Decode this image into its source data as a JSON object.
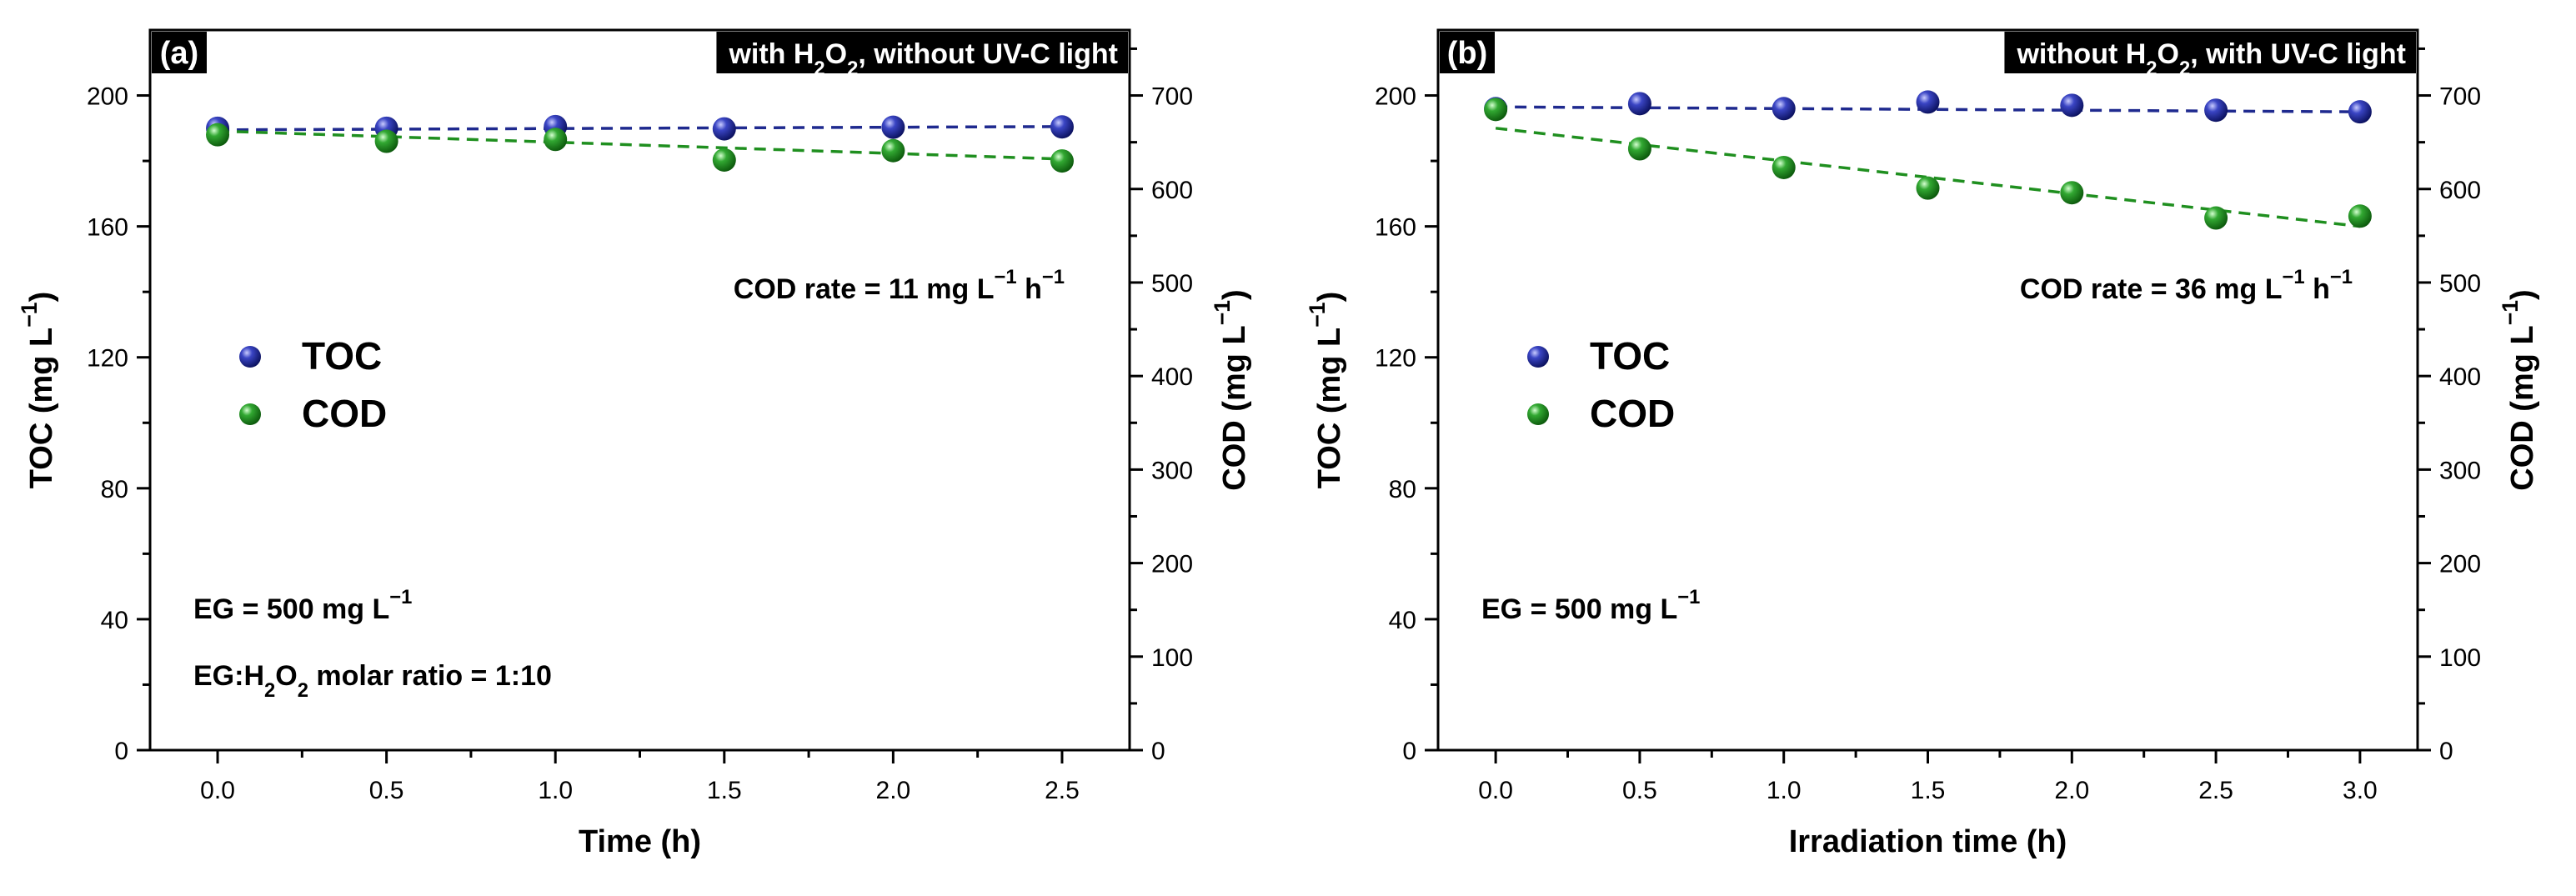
{
  "chart_data": [
    {
      "type": "scatter",
      "panel_label": "(a)",
      "condition_title": {
        "pre": "with H",
        "sub1": "2",
        "mid": "O",
        "sub2": "2",
        "post": ", without UV-C light"
      },
      "xlabel": "Time (h)",
      "ylabel_left": {
        "main": "TOC (mg L",
        "sup": "−1",
        "close": ")"
      },
      "ylabel_right": {
        "main": "COD (mg L",
        "sup": "−1",
        "close": ")"
      },
      "xlim": [
        -0.2,
        2.7
      ],
      "ylim_left": [
        0,
        220
      ],
      "ylim_right": [
        0,
        770
      ],
      "x_ticks": [
        0.0,
        0.5,
        1.0,
        1.5,
        2.0,
        2.5
      ],
      "x_tick_labels": [
        "0.0",
        "0.5",
        "1.0",
        "1.5",
        "2.0",
        "2.5"
      ],
      "y_left_ticks": [
        0,
        40,
        80,
        120,
        160,
        200
      ],
      "y_left_tick_labels": [
        "0",
        "40",
        "80",
        "120",
        "160",
        "200"
      ],
      "y_right_ticks": [
        0,
        100,
        200,
        300,
        400,
        500,
        600,
        700
      ],
      "y_right_tick_labels": [
        "0",
        "100",
        "200",
        "300",
        "400",
        "500",
        "600",
        "700"
      ],
      "series": [
        {
          "name": "TOC",
          "axis": "left",
          "color": "#1f2a8f",
          "x": [
            0,
            0.5,
            1.0,
            1.5,
            2.0,
            2.5
          ],
          "y": [
            190,
            190,
            190.5,
            189.8,
            190.3,
            190.4
          ],
          "fit_y": [
            189.5,
            190.5
          ]
        },
        {
          "name": "COD",
          "axis": "right",
          "color": "#1f8f1f",
          "x": [
            0,
            0.5,
            1.0,
            1.5,
            2.0,
            2.5
          ],
          "y": [
            658,
            651,
            653,
            631,
            641,
            630
          ],
          "fit_y": [
            662,
            632
          ]
        }
      ],
      "legend": {
        "placement": "center-left",
        "entries": [
          "TOC",
          "COD"
        ]
      },
      "annotation_rate": {
        "pre": "COD rate = 11 mg L",
        "sup1": "−1",
        "mid": " h",
        "sup2": "−1"
      },
      "annotation_eg": {
        "pre": "EG = 500 mg L",
        "sup": "−1"
      },
      "annotation_ratio": {
        "pre": "EG:H",
        "sub1": "2",
        "mid": "O",
        "sub2": "2",
        "post": " molar ratio = 1:10"
      }
    },
    {
      "type": "scatter",
      "panel_label": "(b)",
      "condition_title": {
        "pre": "without H",
        "sub1": "2",
        "mid": "O",
        "sub2": "2",
        "post": ", with UV-C light"
      },
      "xlabel": "Irradiation time (h)",
      "ylabel_left": {
        "main": "TOC (mg L",
        "sup": "−1",
        "close": ")"
      },
      "ylabel_right": {
        "main": "COD (mg L",
        "sup": "−1",
        "close": ")"
      },
      "xlim": [
        -0.2,
        3.2
      ],
      "ylim_left": [
        0,
        220
      ],
      "ylim_right": [
        0,
        770
      ],
      "x_ticks": [
        0.0,
        0.5,
        1.0,
        1.5,
        2.0,
        2.5,
        3.0
      ],
      "x_tick_labels": [
        "0.0",
        "0.5",
        "1.0",
        "1.5",
        "2.0",
        "2.5",
        "3.0"
      ],
      "y_left_ticks": [
        0,
        40,
        80,
        120,
        160,
        200
      ],
      "y_left_tick_labels": [
        "0",
        "40",
        "80",
        "120",
        "160",
        "200"
      ],
      "y_right_ticks": [
        0,
        100,
        200,
        300,
        400,
        500,
        600,
        700
      ],
      "y_right_tick_labels": [
        "0",
        "100",
        "200",
        "300",
        "400",
        "500",
        "600",
        "700"
      ],
      "series": [
        {
          "name": "TOC",
          "axis": "left",
          "color": "#1f2a8f",
          "x": [
            0,
            0.5,
            1.0,
            1.5,
            2.0,
            2.5,
            3.0
          ],
          "y": [
            196,
            197.5,
            196,
            198,
            197,
            195.5,
            195
          ],
          "fit_y": [
            196.5,
            195
          ]
        },
        {
          "name": "COD",
          "axis": "right",
          "color": "#1f8f1f",
          "x": [
            0,
            0.5,
            1.0,
            1.5,
            2.0,
            2.5,
            3.0
          ],
          "y": [
            685,
            643,
            623,
            601,
            596,
            569,
            571
          ],
          "fit_y": [
            665,
            560
          ]
        }
      ],
      "legend": {
        "placement": "center-left",
        "entries": [
          "TOC",
          "COD"
        ]
      },
      "annotation_rate": {
        "pre": "COD rate = 36 mg L",
        "sup1": "−1",
        "mid": " h",
        "sup2": "−1"
      },
      "annotation_eg": {
        "pre": "EG = 500 mg L",
        "sup": "−1"
      }
    }
  ]
}
